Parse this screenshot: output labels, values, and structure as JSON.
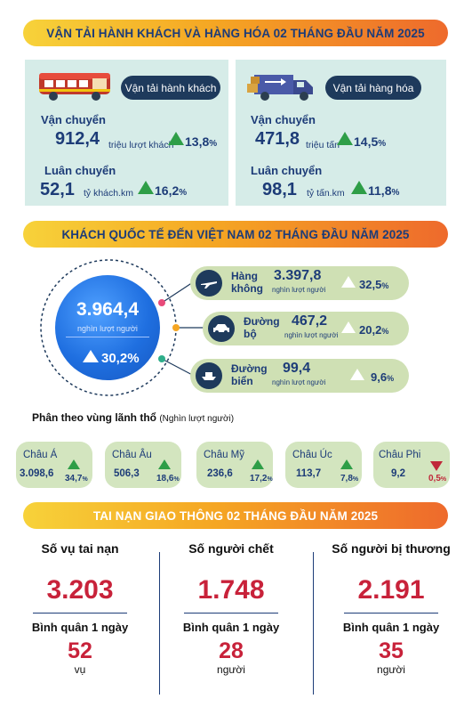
{
  "transport": {
    "title": "VẬN TẢI HÀNH KHÁCH VÀ HÀNG HÓA 02 THÁNG ĐẦU NĂM 2025",
    "passenger": {
      "pill": "Vận tải hành khách",
      "carry_label": "Vận chuyển",
      "carry_value": "912,4",
      "carry_unit": "triệu lượt khách",
      "carry_pct": "13,8",
      "rot_label": "Luân chuyển",
      "rot_value": "52,1",
      "rot_unit": "tỷ khách.km",
      "rot_pct": "16,2"
    },
    "cargo": {
      "pill": "Vận tải hàng hóa",
      "carry_label": "Vận chuyển",
      "carry_value": "471,8",
      "carry_unit": "triệu tấn",
      "carry_pct": "14,5",
      "rot_label": "Luân chuyển",
      "rot_value": "98,1",
      "rot_unit": "tỷ tấn.km",
      "rot_pct": "11,8"
    },
    "pct_sign": "%"
  },
  "visitors": {
    "title": "KHÁCH QUỐC TẾ ĐẾN VIỆT NAM 02 THÁNG ĐẦU NĂM 2025",
    "total_value": "3.964,4",
    "total_unit": "nghìn lượt người",
    "total_pct": "30,2%",
    "modes": [
      {
        "name_1": "Hàng",
        "name_2": "không",
        "value": "3.397,8",
        "unit": "nghìn lượt người",
        "pct": "32,5",
        "icon": "airplane-icon"
      },
      {
        "name_1": "Đường",
        "name_2": "bộ",
        "value": "467,2",
        "unit": "nghìn lượt người",
        "pct": "20,2",
        "icon": "car-icon"
      },
      {
        "name_1": "Đường",
        "name_2": "biển",
        "value": "99,4",
        "unit": "nghìn lượt người",
        "pct": "9,6",
        "icon": "ship-icon"
      }
    ],
    "region_title": "Phân theo vùng lãnh thổ",
    "region_unit": "(Nghìn lượt người)",
    "regions": [
      {
        "name": "Châu Á",
        "value": "3.098,6",
        "pct": "34,7",
        "trend": "up"
      },
      {
        "name": "Châu Âu",
        "value": "506,3",
        "pct": "18,6",
        "trend": "up"
      },
      {
        "name": "Châu Mỹ",
        "value": "236,6",
        "pct": "17,2",
        "trend": "up"
      },
      {
        "name": "Châu Úc",
        "value": "113,7",
        "pct": "7,8",
        "trend": "up"
      },
      {
        "name": "Châu Phi",
        "value": "9,2",
        "pct": "0,5",
        "trend": "down"
      }
    ]
  },
  "accidents": {
    "title": "TAI NẠN GIAO THÔNG 02 THÁNG ĐẦU NĂM 2025",
    "avg_label": "Bình quân 1 ngày",
    "cols": [
      {
        "label": "Số vụ tai nạn",
        "value": "3.203",
        "avg": "52",
        "unit": "vụ"
      },
      {
        "label": "Số người chết",
        "value": "1.748",
        "avg": "28",
        "unit": "người"
      },
      {
        "label": "Số người bị thương",
        "value": "2.191",
        "avg": "35",
        "unit": "người"
      }
    ]
  },
  "colors": {
    "navy": "#1d3c78",
    "green": "#2e9e47",
    "red": "#d0263a",
    "panel": "#d6ece8",
    "mode": "#cfe0b4"
  }
}
